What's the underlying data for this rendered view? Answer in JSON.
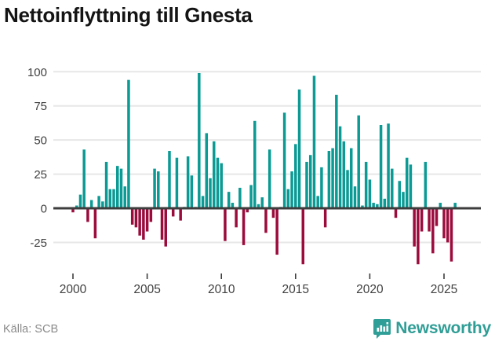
{
  "title": "Nettoinflyttning till Gnesta",
  "source": {
    "label": "Källa: SCB"
  },
  "brand": {
    "name": "Newsworthy",
    "color": "#2f9e96"
  },
  "colors": {
    "positive": "#0b9a94",
    "negative": "#9b0c3d",
    "grid": "#e7e7e7",
    "zero_line": "#3d3d3d",
    "tick": "#3d3d3d",
    "axis_text": "#3f3f3f",
    "title_text": "#141414",
    "source_text": "#8a8a8a"
  },
  "chart_data": {
    "type": "bar",
    "title": "Nettoinflyttning till Gnesta",
    "frequency": "quarterly",
    "start": "2000-Q1",
    "xlabel": "",
    "ylabel": "",
    "xticks": [
      2000,
      2005,
      2010,
      2015,
      2020,
      2025
    ],
    "yticks": [
      100,
      75,
      50,
      25,
      0,
      -25
    ],
    "ylim": [
      -45,
      105
    ],
    "grid": "horizontal",
    "legend": "none",
    "values": [
      -3,
      2,
      10,
      43,
      -10,
      6,
      -22,
      9,
      5,
      34,
      14,
      14,
      31,
      29,
      16,
      94,
      -12,
      -14,
      -20,
      -23,
      -17,
      -10,
      29,
      27,
      -23,
      -28,
      42,
      -6,
      37,
      -9,
      1,
      38,
      24,
      1,
      99,
      9,
      55,
      22,
      49,
      37,
      33,
      -24,
      12,
      4,
      -14,
      15,
      -27,
      -3,
      17,
      64,
      3,
      8,
      -18,
      43,
      -7,
      -34,
      1,
      70,
      14,
      27,
      47,
      87,
      -41,
      34,
      39,
      97,
      9,
      30,
      -14,
      42,
      44,
      83,
      60,
      49,
      28,
      44,
      16,
      68,
      2,
      34,
      21,
      4,
      3,
      61,
      7,
      62,
      29,
      -7,
      20,
      12,
      37,
      32,
      -28,
      -41,
      -17,
      34,
      -17,
      -33,
      -13,
      4,
      -22,
      -25,
      -39,
      4
    ]
  }
}
